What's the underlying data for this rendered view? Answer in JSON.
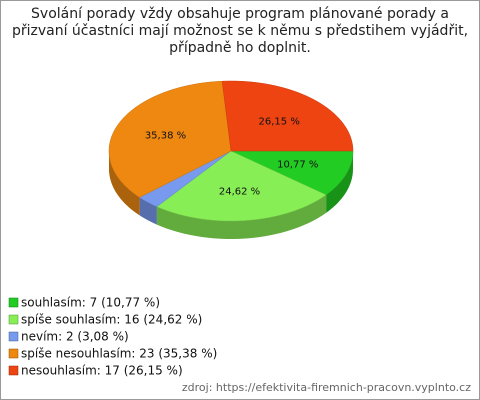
{
  "chart_data": {
    "type": "pie",
    "title": "Svolání porady vždy obsahuje program plánované porady a přizvaní účastníci mají možnost se k němu s předstihem vyjádřit, případně ho doplnit.",
    "categories": [
      "souhlasím: 7 (10,77 %)",
      "spíše souhlasím: 16 (24,62 %)",
      "nevím: 2 (3,08 %)",
      "spíše nesouhlasím: 23 (35,38 %)",
      "nesouhlasím: 17 (26,15 %)"
    ],
    "values": [
      10.77,
      24.62,
      3.08,
      35.38,
      26.15
    ],
    "value_labels": [
      "10,77 %",
      "24,62 %",
      null,
      "35,38 %",
      "26,15 %"
    ],
    "colors": [
      "#22cc22",
      "#88ee55",
      "#7799ee",
      "#ee8811",
      "#ee4411"
    ],
    "source": "zdroj: https://efektivita-firemnich-pracovn.vyplnto.cz"
  }
}
